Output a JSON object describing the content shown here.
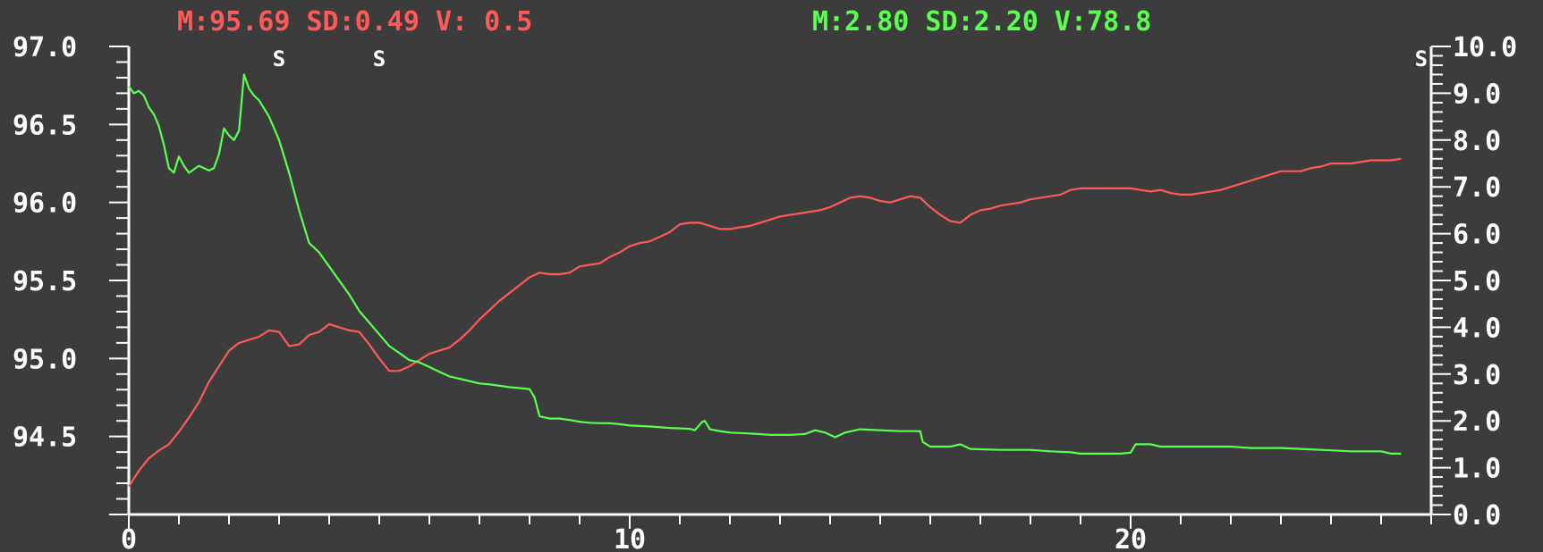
{
  "header": {
    "left_stats": "M:95.69 SD:0.49 V: 0.5",
    "right_stats": "M:2.80 SD:2.20 V:78.8"
  },
  "colors": {
    "background": "#3c3c3c",
    "axis": "#ffffff",
    "red_series": "#ff5a5a",
    "green_series": "#5aff50"
  },
  "chart_data": {
    "type": "line",
    "title": "",
    "xlabel": "",
    "ylabel": "",
    "xlim": [
      0,
      26
    ],
    "ylim_left": [
      94.0,
      97.0
    ],
    "ylim_right": [
      0.0,
      10.0
    ],
    "x_ticks": [
      "0",
      "10",
      "20"
    ],
    "x_tick_values": [
      0,
      10,
      20
    ],
    "y_left_ticks": [
      "94.5",
      "95.0",
      "95.5",
      "96.0",
      "96.5",
      "97.0"
    ],
    "y_left_tick_values": [
      94.5,
      95.0,
      95.5,
      96.0,
      96.5,
      97.0
    ],
    "y_right_ticks": [
      "0.0",
      "1.0",
      "2.0",
      "3.0",
      "4.0",
      "5.0",
      "6.0",
      "7.0",
      "8.0",
      "9.0",
      "10.0"
    ],
    "y_right_tick_values": [
      0,
      1,
      2,
      3,
      4,
      5,
      6,
      7,
      8,
      9,
      10
    ],
    "markers": [
      {
        "label": "S",
        "x": 3.0
      },
      {
        "label": "S",
        "x": 5.0
      },
      {
        "label": "S",
        "x": 25.8
      }
    ],
    "grid": false,
    "series": [
      {
        "axis": "left",
        "color": "#ff5a5a",
        "points": [
          [
            0.0,
            94.18
          ],
          [
            0.2,
            94.28
          ],
          [
            0.4,
            94.36
          ],
          [
            0.6,
            94.41
          ],
          [
            0.8,
            94.45
          ],
          [
            1.0,
            94.53
          ],
          [
            1.2,
            94.62
          ],
          [
            1.4,
            94.72
          ],
          [
            1.6,
            94.85
          ],
          [
            1.8,
            94.95
          ],
          [
            2.0,
            95.05
          ],
          [
            2.2,
            95.1
          ],
          [
            2.4,
            95.12
          ],
          [
            2.6,
            95.14
          ],
          [
            2.8,
            95.18
          ],
          [
            3.0,
            95.17
          ],
          [
            3.2,
            95.08
          ],
          [
            3.4,
            95.09
          ],
          [
            3.6,
            95.15
          ],
          [
            3.8,
            95.17
          ],
          [
            4.0,
            95.22
          ],
          [
            4.2,
            95.2
          ],
          [
            4.4,
            95.18
          ],
          [
            4.6,
            95.17
          ],
          [
            4.8,
            95.09
          ],
          [
            5.0,
            95.0
          ],
          [
            5.2,
            94.92
          ],
          [
            5.4,
            94.92
          ],
          [
            5.6,
            94.95
          ],
          [
            5.8,
            94.99
          ],
          [
            6.0,
            95.03
          ],
          [
            6.2,
            95.05
          ],
          [
            6.4,
            95.07
          ],
          [
            6.6,
            95.12
          ],
          [
            6.8,
            95.18
          ],
          [
            7.0,
            95.25
          ],
          [
            7.2,
            95.31
          ],
          [
            7.4,
            95.37
          ],
          [
            7.6,
            95.42
          ],
          [
            7.8,
            95.47
          ],
          [
            8.0,
            95.52
          ],
          [
            8.2,
            95.55
          ],
          [
            8.4,
            95.54
          ],
          [
            8.6,
            95.54
          ],
          [
            8.8,
            95.55
          ],
          [
            9.0,
            95.59
          ],
          [
            9.2,
            95.6
          ],
          [
            9.4,
            95.61
          ],
          [
            9.6,
            95.65
          ],
          [
            9.8,
            95.68
          ],
          [
            10.0,
            95.72
          ],
          [
            10.2,
            95.74
          ],
          [
            10.4,
            95.75
          ],
          [
            10.6,
            95.78
          ],
          [
            10.8,
            95.81
          ],
          [
            11.0,
            95.86
          ],
          [
            11.2,
            95.87
          ],
          [
            11.4,
            95.87
          ],
          [
            11.6,
            95.85
          ],
          [
            11.8,
            95.83
          ],
          [
            12.0,
            95.83
          ],
          [
            12.2,
            95.84
          ],
          [
            12.4,
            95.85
          ],
          [
            12.6,
            95.87
          ],
          [
            12.8,
            95.89
          ],
          [
            13.0,
            95.91
          ],
          [
            13.2,
            95.92
          ],
          [
            13.4,
            95.93
          ],
          [
            13.6,
            95.94
          ],
          [
            13.8,
            95.95
          ],
          [
            14.0,
            95.97
          ],
          [
            14.2,
            96.0
          ],
          [
            14.4,
            96.03
          ],
          [
            14.6,
            96.04
          ],
          [
            14.8,
            96.03
          ],
          [
            15.0,
            96.01
          ],
          [
            15.2,
            96.0
          ],
          [
            15.4,
            96.02
          ],
          [
            15.6,
            96.04
          ],
          [
            15.8,
            96.03
          ],
          [
            16.0,
            95.97
          ],
          [
            16.2,
            95.92
          ],
          [
            16.4,
            95.88
          ],
          [
            16.6,
            95.87
          ],
          [
            16.8,
            95.92
          ],
          [
            17.0,
            95.95
          ],
          [
            17.2,
            95.96
          ],
          [
            17.4,
            95.98
          ],
          [
            17.6,
            95.99
          ],
          [
            17.8,
            96.0
          ],
          [
            18.0,
            96.02
          ],
          [
            18.2,
            96.03
          ],
          [
            18.4,
            96.04
          ],
          [
            18.6,
            96.05
          ],
          [
            18.8,
            96.08
          ],
          [
            19.0,
            96.09
          ],
          [
            19.2,
            96.09
          ],
          [
            19.4,
            96.09
          ],
          [
            19.6,
            96.09
          ],
          [
            19.8,
            96.09
          ],
          [
            20.0,
            96.09
          ],
          [
            20.2,
            96.08
          ],
          [
            20.4,
            96.07
          ],
          [
            20.6,
            96.08
          ],
          [
            20.8,
            96.06
          ],
          [
            21.0,
            96.05
          ],
          [
            21.2,
            96.05
          ],
          [
            21.4,
            96.06
          ],
          [
            21.6,
            96.07
          ],
          [
            21.8,
            96.08
          ],
          [
            22.0,
            96.1
          ],
          [
            22.2,
            96.12
          ],
          [
            22.4,
            96.14
          ],
          [
            22.6,
            96.16
          ],
          [
            22.8,
            96.18
          ],
          [
            23.0,
            96.2
          ],
          [
            23.2,
            96.2
          ],
          [
            23.4,
            96.2
          ],
          [
            23.6,
            96.22
          ],
          [
            23.8,
            96.23
          ],
          [
            24.0,
            96.25
          ],
          [
            24.2,
            96.25
          ],
          [
            24.4,
            96.25
          ],
          [
            24.6,
            96.26
          ],
          [
            24.8,
            96.27
          ],
          [
            25.0,
            96.27
          ],
          [
            25.2,
            96.27
          ],
          [
            25.4,
            96.28
          ]
        ]
      },
      {
        "axis": "right",
        "color": "#5aff50",
        "points": [
          [
            0.0,
            9.15
          ],
          [
            0.1,
            9.0
          ],
          [
            0.2,
            9.05
          ],
          [
            0.3,
            8.95
          ],
          [
            0.4,
            8.7
          ],
          [
            0.5,
            8.55
          ],
          [
            0.6,
            8.3
          ],
          [
            0.7,
            7.9
          ],
          [
            0.8,
            7.4
          ],
          [
            0.9,
            7.3
          ],
          [
            1.0,
            7.65
          ],
          [
            1.1,
            7.45
          ],
          [
            1.2,
            7.3
          ],
          [
            1.4,
            7.45
          ],
          [
            1.6,
            7.35
          ],
          [
            1.7,
            7.4
          ],
          [
            1.8,
            7.7
          ],
          [
            1.9,
            8.25
          ],
          [
            2.0,
            8.1
          ],
          [
            2.1,
            8.0
          ],
          [
            2.2,
            8.2
          ],
          [
            2.3,
            9.4
          ],
          [
            2.4,
            9.1
          ],
          [
            2.5,
            8.95
          ],
          [
            2.6,
            8.85
          ],
          [
            2.8,
            8.5
          ],
          [
            3.0,
            8.0
          ],
          [
            3.2,
            7.3
          ],
          [
            3.4,
            6.5
          ],
          [
            3.6,
            5.8
          ],
          [
            3.8,
            5.6
          ],
          [
            4.0,
            5.3
          ],
          [
            4.2,
            5.0
          ],
          [
            4.4,
            4.7
          ],
          [
            4.6,
            4.35
          ],
          [
            4.8,
            4.1
          ],
          [
            5.0,
            3.85
          ],
          [
            5.2,
            3.6
          ],
          [
            5.4,
            3.45
          ],
          [
            5.6,
            3.3
          ],
          [
            5.8,
            3.25
          ],
          [
            6.0,
            3.15
          ],
          [
            6.2,
            3.05
          ],
          [
            6.4,
            2.95
          ],
          [
            6.6,
            2.9
          ],
          [
            6.8,
            2.85
          ],
          [
            7.0,
            2.8
          ],
          [
            7.2,
            2.78
          ],
          [
            7.4,
            2.75
          ],
          [
            7.6,
            2.72
          ],
          [
            7.8,
            2.7
          ],
          [
            8.0,
            2.68
          ],
          [
            8.1,
            2.5
          ],
          [
            8.2,
            2.1
          ],
          [
            8.4,
            2.05
          ],
          [
            8.6,
            2.05
          ],
          [
            8.8,
            2.02
          ],
          [
            9.0,
            1.98
          ],
          [
            9.2,
            1.96
          ],
          [
            9.4,
            1.95
          ],
          [
            9.6,
            1.95
          ],
          [
            9.8,
            1.93
          ],
          [
            10.0,
            1.9
          ],
          [
            10.4,
            1.88
          ],
          [
            10.8,
            1.85
          ],
          [
            11.2,
            1.83
          ],
          [
            11.3,
            1.8
          ],
          [
            11.45,
            1.98
          ],
          [
            11.5,
            2.0
          ],
          [
            11.6,
            1.82
          ],
          [
            11.8,
            1.78
          ],
          [
            12.0,
            1.75
          ],
          [
            12.4,
            1.73
          ],
          [
            12.8,
            1.7
          ],
          [
            13.2,
            1.7
          ],
          [
            13.5,
            1.72
          ],
          [
            13.7,
            1.8
          ],
          [
            13.9,
            1.75
          ],
          [
            14.1,
            1.65
          ],
          [
            14.3,
            1.75
          ],
          [
            14.6,
            1.82
          ],
          [
            15.0,
            1.8
          ],
          [
            15.4,
            1.78
          ],
          [
            15.8,
            1.78
          ],
          [
            15.85,
            1.55
          ],
          [
            16.0,
            1.45
          ],
          [
            16.4,
            1.45
          ],
          [
            16.6,
            1.5
          ],
          [
            16.8,
            1.4
          ],
          [
            17.4,
            1.38
          ],
          [
            18.0,
            1.38
          ],
          [
            18.4,
            1.35
          ],
          [
            18.8,
            1.33
          ],
          [
            19.0,
            1.3
          ],
          [
            19.4,
            1.3
          ],
          [
            19.8,
            1.3
          ],
          [
            20.0,
            1.32
          ],
          [
            20.1,
            1.5
          ],
          [
            20.4,
            1.5
          ],
          [
            20.6,
            1.45
          ],
          [
            21.2,
            1.45
          ],
          [
            22.0,
            1.45
          ],
          [
            22.4,
            1.42
          ],
          [
            23.0,
            1.42
          ],
          [
            23.4,
            1.4
          ],
          [
            24.0,
            1.37
          ],
          [
            24.4,
            1.35
          ],
          [
            25.0,
            1.35
          ],
          [
            25.2,
            1.3
          ],
          [
            25.4,
            1.3
          ]
        ]
      }
    ]
  }
}
